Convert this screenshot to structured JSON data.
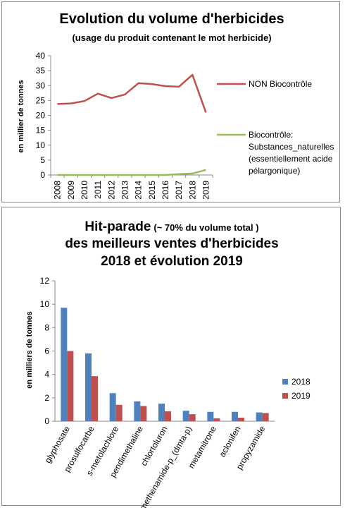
{
  "chart_data": [
    {
      "type": "line",
      "title": "Evolution du volume d'herbicides",
      "subtitle": "(usage du produit contenant le mot herbicide)",
      "ylabel": "en millier de tonnes",
      "xlabel": "",
      "x": [
        "2008",
        "2009",
        "2010",
        "2011",
        "2012",
        "2013",
        "2014",
        "2015",
        "2016",
        "2017",
        "2018",
        "2019"
      ],
      "ylim": [
        0,
        40
      ],
      "yticks": [
        "0",
        "5",
        "10",
        "15",
        "20",
        "25",
        "30",
        "35",
        "40"
      ],
      "grid": false,
      "legend_position": "right",
      "series": [
        {
          "name": "NON Biocontrôle",
          "color": "#c0504d",
          "values": [
            23.8,
            24.0,
            24.8,
            27.3,
            25.8,
            27.0,
            30.8,
            30.5,
            29.8,
            29.6,
            33.6,
            21.0
          ]
        },
        {
          "name": "Biocontrôle: Substances_naturelles (essentiellement acide pélargonique)",
          "legend_lines": [
            "Biocontrôle:",
            "Substances_naturelles",
            "(essentiellement acide",
            "pélargonique)"
          ],
          "color": "#9bbb59",
          "values": [
            0,
            0,
            0,
            0,
            0,
            0,
            0,
            0,
            0,
            0.3,
            0.5,
            1.7
          ]
        }
      ]
    },
    {
      "type": "bar",
      "title_bold": "Hit-parade",
      "title_small": "(~ 70% du volume total )",
      "title_line2": "des meilleurs ventes d'herbicides",
      "title_line3": "2018 et évolution 2019",
      "ylabel": "en milliers de tonnes",
      "xlabel": "",
      "categories": [
        "glyphosate",
        "prosulfocarbe",
        "s-metolachlore",
        "pendimethaline",
        "chlortoluron",
        "dimethenamide-p_(dmta-p)",
        "metamitrone",
        "aclonifen",
        "propyzamide"
      ],
      "ylim": [
        0,
        12
      ],
      "yticks": [
        "0",
        "2",
        "4",
        "6",
        "8",
        "10",
        "12"
      ],
      "grid": false,
      "legend_position": "right",
      "series": [
        {
          "name": "2018",
          "color": "#4f81bd",
          "values": [
            9.7,
            5.8,
            2.4,
            1.7,
            1.5,
            0.9,
            0.8,
            0.8,
            0.75
          ]
        },
        {
          "name": "2019",
          "color": "#c0504d",
          "values": [
            6.0,
            3.85,
            1.4,
            1.3,
            0.85,
            0.6,
            0.25,
            0.3,
            0.7
          ]
        }
      ]
    }
  ]
}
